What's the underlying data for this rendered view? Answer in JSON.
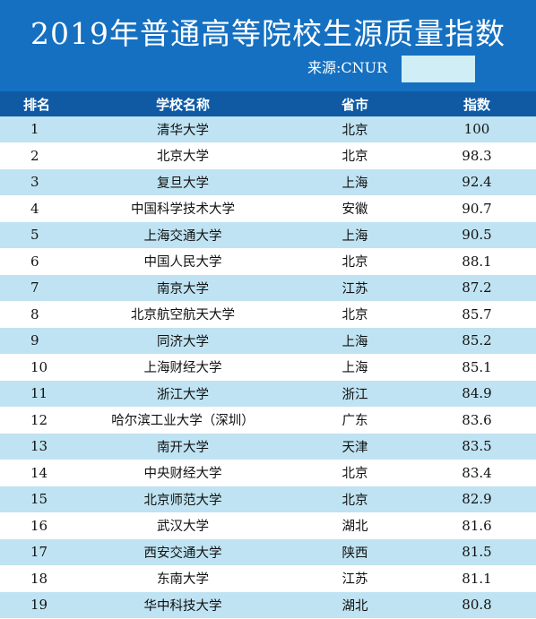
{
  "header": {
    "title": "2019年普通高等院校生源质量指数",
    "source": "来源:CNUR"
  },
  "columns": [
    "排名",
    "学校名称",
    "省市",
    "指数"
  ],
  "rows": [
    {
      "rank": "1",
      "name": "清华大学",
      "province": "北京",
      "index": "100"
    },
    {
      "rank": "2",
      "name": "北京大学",
      "province": "北京",
      "index": "98.3"
    },
    {
      "rank": "3",
      "name": "复旦大学",
      "province": "上海",
      "index": "92.4"
    },
    {
      "rank": "4",
      "name": "中国科学技术大学",
      "province": "安徽",
      "index": "90.7"
    },
    {
      "rank": "5",
      "name": "上海交通大学",
      "province": "上海",
      "index": "90.5"
    },
    {
      "rank": "6",
      "name": "中国人民大学",
      "province": "北京",
      "index": "88.1"
    },
    {
      "rank": "7",
      "name": "南京大学",
      "province": "江苏",
      "index": "87.2"
    },
    {
      "rank": "8",
      "name": "北京航空航天大学",
      "province": "北京",
      "index": "85.7"
    },
    {
      "rank": "9",
      "name": "同济大学",
      "province": "上海",
      "index": "85.2"
    },
    {
      "rank": "10",
      "name": "上海财经大学",
      "province": "上海",
      "index": "85.1"
    },
    {
      "rank": "11",
      "name": "浙江大学",
      "province": "浙江",
      "index": "84.9"
    },
    {
      "rank": "12",
      "name": "哈尔滨工业大学（深圳）",
      "province": "广东",
      "index": "83.6"
    },
    {
      "rank": "13",
      "name": "南开大学",
      "province": "天津",
      "index": "83.5"
    },
    {
      "rank": "14",
      "name": "中央财经大学",
      "province": "北京",
      "index": "83.4"
    },
    {
      "rank": "15",
      "name": "北京师范大学",
      "province": "北京",
      "index": "82.9"
    },
    {
      "rank": "16",
      "name": "武汉大学",
      "province": "湖北",
      "index": "81.6"
    },
    {
      "rank": "17",
      "name": "西安交通大学",
      "province": "陕西",
      "index": "81.5"
    },
    {
      "rank": "18",
      "name": "东南大学",
      "province": "江苏",
      "index": "81.1"
    },
    {
      "rank": "19",
      "name": "华中科技大学",
      "province": "湖北",
      "index": "80.8"
    }
  ],
  "colors": {
    "header_bg": "#1570c1",
    "table_header_bg": "#0f5aa3",
    "row_alt_bg": "#bfe3f2",
    "mask": "#cfeef6"
  }
}
